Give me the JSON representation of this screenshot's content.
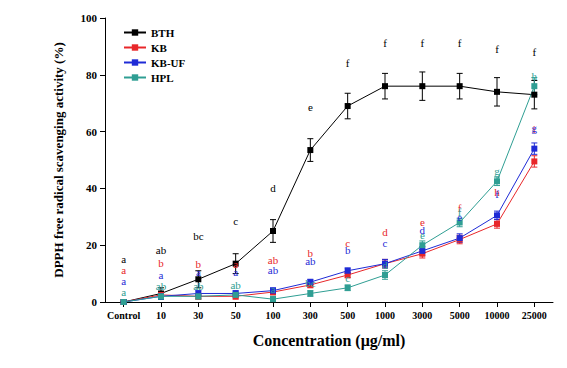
{
  "chart_data": {
    "type": "line",
    "x_label": "Concentration (μg/ml)",
    "y_label": "DPPH free radical scavenging activity (%)",
    "categories": [
      "Control",
      "10",
      "30",
      "50",
      "100",
      "300",
      "500",
      "1000",
      "3000",
      "5000",
      "10000",
      "25000"
    ],
    "ylim": [
      0,
      100
    ],
    "yticks": [
      0,
      20,
      40,
      60,
      80,
      100
    ],
    "grid": false,
    "legend": "top-left",
    "series": [
      {
        "name": "BTH",
        "color": "#000000",
        "marker": "square",
        "values": [
          0,
          3,
          8,
          13.5,
          25,
          53.5,
          69,
          76,
          76,
          76,
          74,
          73
        ],
        "errors": [
          0,
          2,
          3,
          3.5,
          4,
          4,
          4.5,
          4.5,
          5,
          4.5,
          5,
          5
        ],
        "letters": [
          "a",
          "ab",
          "bc",
          "c",
          "d",
          "e",
          "f",
          "f",
          "f",
          "f",
          "f",
          "f"
        ]
      },
      {
        "name": "KB",
        "color": "#e8272a",
        "marker": "square",
        "values": [
          0,
          2.5,
          2,
          2,
          3.5,
          6,
          9.5,
          13.5,
          17,
          22,
          27.5,
          49.5
        ],
        "errors": [
          0,
          1,
          1,
          1,
          1,
          1,
          1,
          1.5,
          1.5,
          1.5,
          1.5,
          2
        ],
        "letters": [
          "a",
          "b",
          "b",
          "a",
          "ab",
          "b",
          "c",
          "d",
          "e",
          "f",
          "h",
          "i"
        ]
      },
      {
        "name": "KB-UF",
        "color": "#1f2bd6",
        "marker": "square",
        "values": [
          0,
          2,
          3,
          3,
          4,
          7,
          11,
          13.5,
          18,
          22.5,
          30.5,
          54
        ],
        "errors": [
          0,
          1,
          1,
          1,
          1,
          1,
          1,
          1.5,
          1.5,
          1.5,
          1.5,
          2
        ],
        "letters": [
          "a",
          "a",
          "a",
          "a",
          "ab",
          "ab",
          "b",
          "c",
          "d",
          "e",
          "f",
          "g"
        ]
      },
      {
        "name": "HPL",
        "color": "#2f9e93",
        "marker": "square",
        "values": [
          0,
          2,
          2,
          2.5,
          1,
          3,
          5,
          9.5,
          20,
          28,
          42.5,
          76
        ],
        "errors": [
          0,
          1,
          1,
          1,
          1,
          1,
          1,
          1.5,
          1.5,
          1.5,
          1.5,
          3
        ],
        "letters": [
          "a",
          "ab",
          "ab",
          "ab",
          "a",
          "bc",
          "c",
          "d",
          "e",
          "f",
          "g",
          "h"
        ]
      }
    ]
  }
}
